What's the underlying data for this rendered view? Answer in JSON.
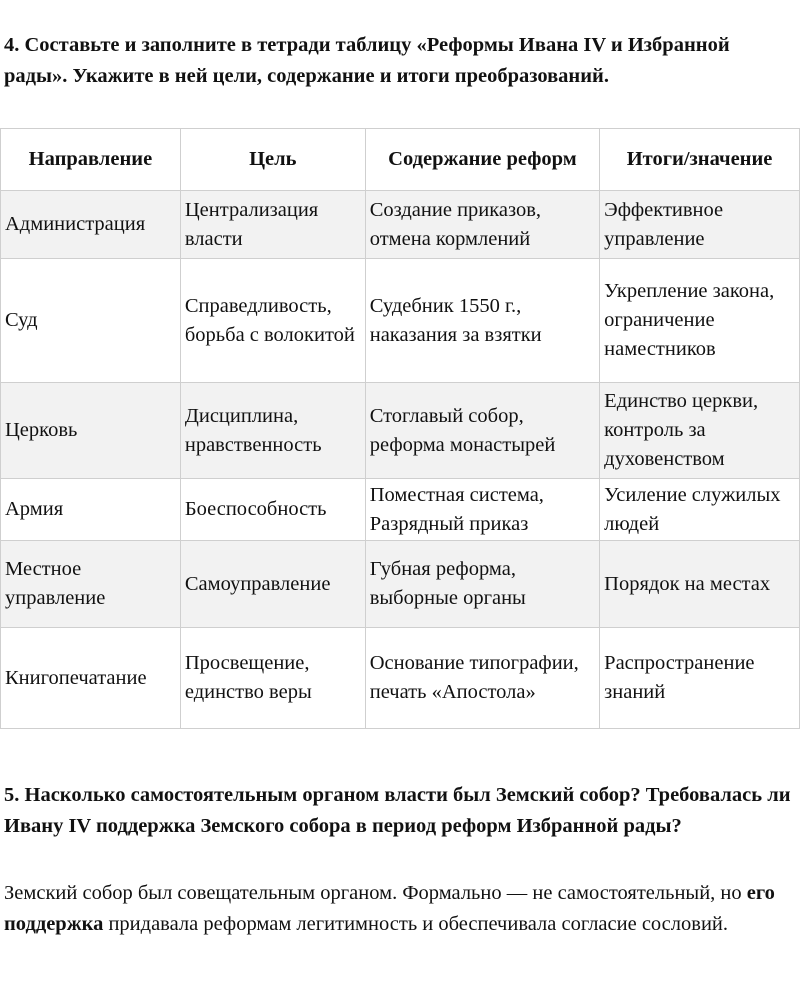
{
  "q4": {
    "title": "4. Составьте и заполните в тетради таблицу «Реформы Ивана IV и Избранной рады». Укажите в ней цели, содержание и итоги преобразований."
  },
  "table": {
    "headers": [
      "Направление",
      "Цель",
      "Содержание реформ",
      "Итоги/значение"
    ],
    "rows": [
      [
        "Администрация",
        "Централизация власти",
        "Создание приказов, отмена кормлений",
        "Эффективное управление"
      ],
      [
        "Суд",
        "Справедливость, борьба с волокитой",
        "Судебник 1550 г., наказания за взятки",
        "Укрепление закона, ограничение наместников"
      ],
      [
        "Церковь",
        "Дисциплина, нравственность",
        "Стоглавый собор, реформа монастырей",
        "Единство церкви, контроль за духовенством"
      ],
      [
        "Армия",
        "Боеспособность",
        "Поместная система, Разрядный приказ",
        "Усиление служилых людей"
      ],
      [
        "Местное управление",
        "Самоуправление",
        "Губная реформа, выборные органы",
        "Порядок на местах"
      ],
      [
        "Книгопечатание",
        "Просвещение, единство веры",
        "Основание типографии, печать «Апостола»",
        "Распространение знаний"
      ]
    ]
  },
  "q5": {
    "title": "5. Насколько самостоятельным органом власти был Земский собор? Требовалась ли Ивану IV поддержка Земского собора в период реформ Избранной рады?",
    "answer_part1": "Земский собор был совещательным органом. Формально — не самостоятельный, но ",
    "answer_bold": "его поддержка",
    "answer_part2": " придавала реформам легитимность и обеспечивала согласие сословий."
  },
  "colors": {
    "row_shade": "#f2f2f2",
    "border": "#cfcfcf"
  }
}
